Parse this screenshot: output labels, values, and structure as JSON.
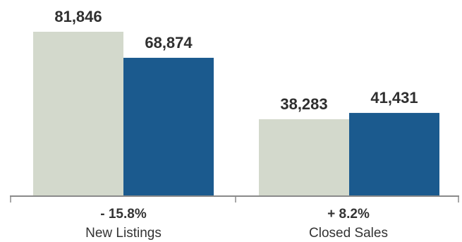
{
  "chart_data": {
    "type": "bar",
    "categories": [
      "New Listings",
      "Closed Sales"
    ],
    "category_changes": [
      "- 15.8%",
      "+ 8.2%"
    ],
    "series": [
      {
        "values": [
          81846,
          38283
        ],
        "labels": [
          "81,846",
          "38,283"
        ],
        "color": "#d3d9cc"
      },
      {
        "values": [
          68874,
          41431
        ],
        "labels": [
          "68,874",
          "41,431"
        ],
        "color": "#1b5a8e"
      }
    ],
    "ylim": [
      0,
      90000
    ],
    "grid": false,
    "colors": {
      "axis": "#8a8a8a",
      "text": "#2f2f2f"
    }
  }
}
